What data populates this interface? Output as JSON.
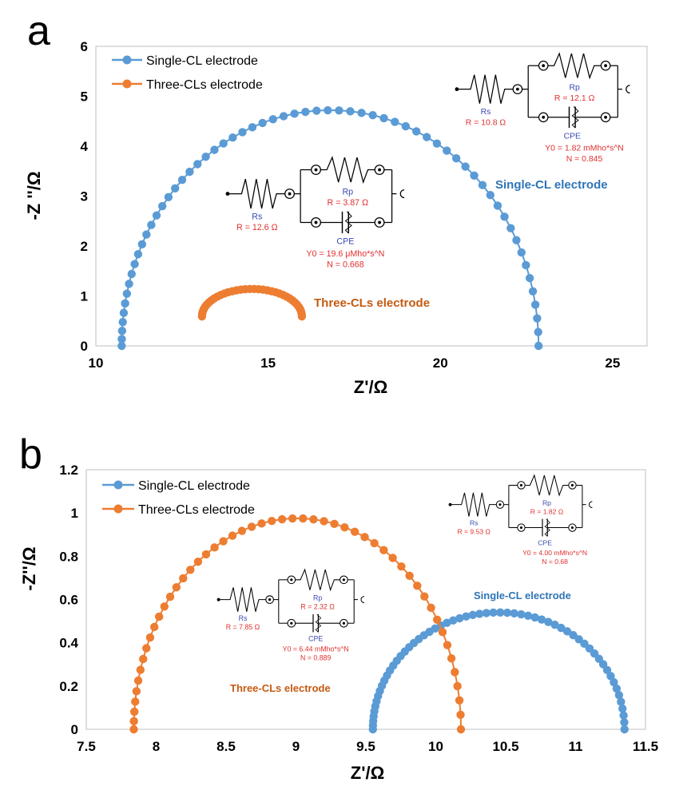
{
  "chart_data": [
    {
      "type": "scatter",
      "panel_label": "a",
      "xlabel": "Z'/Ω",
      "ylabel": "-Z ''/Ω",
      "xlim": [
        10,
        26
      ],
      "ylim": [
        0,
        6
      ],
      "x_ticks": [
        "10",
        "15",
        "20",
        "25"
      ],
      "y_ticks": [
        "0",
        "1",
        "2",
        "3",
        "4",
        "5",
        "6"
      ],
      "legend_position": "top-left",
      "grid": false,
      "series": [
        {
          "name": "Single-CL electrode",
          "color": "#5b9bd5",
          "arc": {
            "start": 10.75,
            "end": 22.85,
            "peak": 4.72,
            "n": 62,
            "skew": 0.14
          }
        },
        {
          "name": "Three-CLs electrode",
          "color": "#ed7d31",
          "arc": {
            "start": 13.08,
            "end": 15.98,
            "peak": 1.14,
            "n": 36,
            "skew": 0.0,
            "y_start": 0.59,
            "y_end": 0.59
          }
        }
      ],
      "annotations": [
        {
          "text": "Single-CL electrode",
          "color": "#2e75b6"
        },
        {
          "text": "Three-CLs electrode",
          "color": "#c55a11"
        }
      ],
      "circuits": [
        {
          "rs_label": "Rs",
          "rs_value": "R = 10.8 Ω",
          "rp_label": "Rp",
          "rp_value": "R = 12.1 Ω",
          "cpe_label": "CPE",
          "y0": "Y0 = 1.82 mMho*s^N",
          "n": "N = 0.845"
        },
        {
          "rs_label": "Rs",
          "rs_value": "R = 12.6 Ω",
          "rp_label": "Rp",
          "rp_value": "R = 3.87 Ω",
          "cpe_label": "CPE",
          "y0": "Y0 = 19.6 μMho*s^N",
          "n": "N = 0.668"
        }
      ]
    },
    {
      "type": "scatter",
      "panel_label": "b",
      "xlabel": "Z'/Ω",
      "ylabel": "-Z''/Ω",
      "xlim": [
        7.5,
        11.5
      ],
      "ylim": [
        0,
        1.2
      ],
      "x_ticks": [
        "7.5",
        "8",
        "8.5",
        "9",
        "9.5",
        "10",
        "10.5",
        "11",
        "11.5"
      ],
      "y_ticks": [
        "0",
        "0.2",
        "0.4",
        "0.6",
        "0.8",
        "1",
        "1.2"
      ],
      "legend_position": "top-left",
      "grid": false,
      "series": [
        {
          "name": "Single-CL electrode",
          "color": "#5b9bd5",
          "arc": {
            "start": 9.55,
            "end": 11.35,
            "peak": 0.54,
            "n": 60,
            "skew": 0.12
          }
        },
        {
          "name": "Three-CLs electrode",
          "color": "#ed7d31",
          "arc": {
            "start": 7.84,
            "end": 10.18,
            "peak": 0.975,
            "n": 52,
            "skew": 0.12
          }
        }
      ],
      "annotations": [
        {
          "text": "Single-CL electrode",
          "color": "#2e75b6"
        },
        {
          "text": "Three-CLs electrode",
          "color": "#c55a11"
        }
      ],
      "circuits": [
        {
          "rs_label": "Rs",
          "rs_value": "R = 9.53 Ω",
          "rp_label": "Rp",
          "rp_value": "R = 1.82 Ω",
          "cpe_label": "CPE",
          "y0": "Y0 = 4.00 mMho*s^N",
          "n": "N = 0.68"
        },
        {
          "rs_label": "Rs",
          "rs_value": "R = 7.85 Ω",
          "rp_label": "Rp",
          "rp_value": "R = 2.32 Ω",
          "cpe_label": "CPE",
          "y0": "Y0 = 6.44 mMho*s^N",
          "n": "N = 0.889"
        }
      ]
    }
  ]
}
